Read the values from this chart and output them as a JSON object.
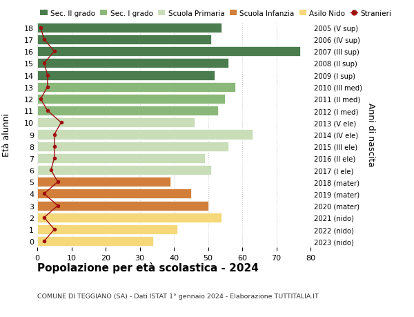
{
  "ages": [
    0,
    1,
    2,
    3,
    4,
    5,
    6,
    7,
    8,
    9,
    10,
    11,
    12,
    13,
    14,
    15,
    16,
    17,
    18
  ],
  "bar_values": [
    34,
    41,
    54,
    50,
    45,
    39,
    51,
    49,
    56,
    63,
    46,
    53,
    55,
    58,
    52,
    56,
    77,
    51,
    54
  ],
  "bar_colors": [
    "#f5d87a",
    "#f5d87a",
    "#f5d87a",
    "#d17f3a",
    "#d17f3a",
    "#d17f3a",
    "#c8ddb8",
    "#c8ddb8",
    "#c8ddb8",
    "#c8ddb8",
    "#c8ddb8",
    "#8ab87a",
    "#8ab87a",
    "#8ab87a",
    "#4a7c4e",
    "#4a7c4e",
    "#4a7c4e",
    "#4a7c4e",
    "#4a7c4e"
  ],
  "stranieri_values": [
    2,
    5,
    2,
    6,
    2,
    6,
    4,
    5,
    5,
    5,
    7,
    3,
    1,
    3,
    3,
    2,
    5,
    2,
    1
  ],
  "right_labels": [
    "2023 (nido)",
    "2022 (nido)",
    "2021 (nido)",
    "2020 (mater)",
    "2019 (mater)",
    "2018 (mater)",
    "2017 (I ele)",
    "2016 (II ele)",
    "2015 (III ele)",
    "2014 (IV ele)",
    "2013 (V ele)",
    "2012 (I med)",
    "2011 (II med)",
    "2010 (III med)",
    "2009 (I sup)",
    "2008 (II sup)",
    "2007 (III sup)",
    "2006 (IV sup)",
    "2005 (V sup)"
  ],
  "ylabel_left": "Età alunni",
  "ylabel_right": "Anni di nascita",
  "xlim": [
    0,
    80
  ],
  "xticks": [
    0,
    10,
    20,
    30,
    40,
    50,
    60,
    70,
    80
  ],
  "title": "Popolazione per età scolastica - 2024",
  "subtitle": "COMUNE DI TEGGIANO (SA) - Dati ISTAT 1° gennaio 2024 - Elaborazione TUTTITALIA.IT",
  "legend_items": [
    {
      "label": "Sec. II grado",
      "color": "#4a7c4e"
    },
    {
      "label": "Sec. I grado",
      "color": "#8ab87a"
    },
    {
      "label": "Scuola Primaria",
      "color": "#c8ddb8"
    },
    {
      "label": "Scuola Infanzia",
      "color": "#d17f3a"
    },
    {
      "label": "Asilo Nido",
      "color": "#f5d87a"
    },
    {
      "label": "Stranieri",
      "color": "#a01010"
    }
  ],
  "bg_color": "#ffffff",
  "grid_color": "#cccccc",
  "bar_height": 0.82
}
